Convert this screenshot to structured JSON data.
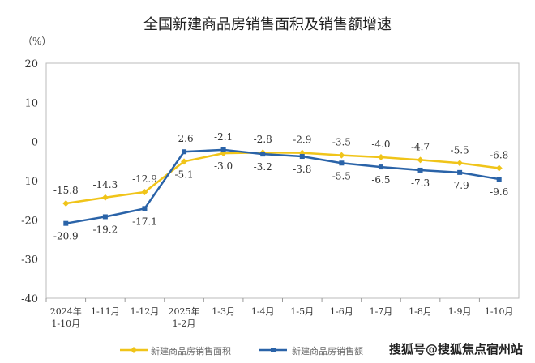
{
  "chart_data": {
    "type": "line",
    "title": "全国新建商品房销售面积及销售额增速",
    "ylabel": "（%）",
    "ylim": [
      -40,
      20
    ],
    "yticks": [
      20,
      10,
      0,
      -10,
      -20,
      -30,
      -40
    ],
    "grid": false,
    "legend": "bottom",
    "categories": [
      [
        "2024年",
        "1-10月"
      ],
      [
        "1-11月"
      ],
      [
        "1-12月"
      ],
      [
        "2025年",
        "1-2月"
      ],
      [
        "1-3月"
      ],
      [
        "1-4月"
      ],
      [
        "1-5月"
      ],
      [
        "1-6月"
      ],
      [
        "1-7月"
      ],
      [
        "1-8月"
      ],
      [
        "1-9月"
      ],
      [
        "1-10月"
      ]
    ],
    "series": [
      {
        "name": "新建商品房销售面积",
        "color": "#f0c419",
        "values": [
          -15.8,
          -14.3,
          -12.9,
          -5.1,
          -3.0,
          -2.8,
          -2.9,
          -3.5,
          -4.0,
          -4.7,
          -5.5,
          -6.8
        ]
      },
      {
        "name": "新建商品房销售额",
        "color": "#2a63a8",
        "values": [
          -20.9,
          -19.2,
          -17.1,
          -2.6,
          -2.1,
          -3.2,
          -3.8,
          -5.5,
          -6.5,
          -7.3,
          -7.9,
          -9.6
        ]
      }
    ]
  },
  "watermark": "搜狐号@搜狐焦点宿州站"
}
